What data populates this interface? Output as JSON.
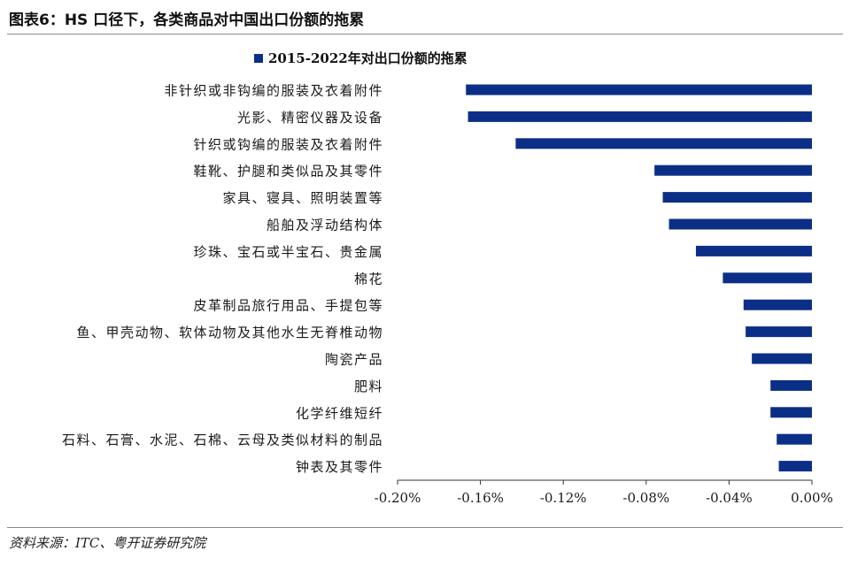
{
  "figure_title": "图表6：HS 口径下，各类商品对中国出口份额的拖累",
  "source_note": "资料来源：ITC、粤开证券研究院",
  "chart_data": {
    "type": "bar",
    "orientation": "horizontal",
    "title": "",
    "xlabel": "",
    "ylabel": "",
    "legend_position": "top-center",
    "xlim": [
      -0.2,
      0.0
    ],
    "x_ticks": [
      "-0.20%",
      "-0.16%",
      "-0.12%",
      "-0.08%",
      "-0.04%",
      "0.00%"
    ],
    "x_tick_values": [
      -0.2,
      -0.16,
      -0.12,
      -0.08,
      -0.04,
      0.0
    ],
    "unit": "%",
    "grid": false,
    "categories": [
      "非针织或非钩编的服装及衣着附件",
      "光影、精密仪器及设备",
      "针织或钩编的服装及衣着附件",
      "鞋靴、护腿和类似品及其零件",
      "家具、寝具、照明装置等",
      "船舶及浮动结构体",
      "珍珠、宝石或半宝石、贵金属",
      "棉花",
      "皮革制品旅行用品、手提包等",
      "鱼、甲壳动物、软体动物及其他水生无脊椎动物",
      "陶瓷产品",
      "肥料",
      "化学纤维短纤",
      "石料、石膏、水泥、石棉、云母及类似材料的制品",
      "钟表及其零件"
    ],
    "series": [
      {
        "name": "2015-2022年对出口份额的拖累",
        "color": "#0b2f86",
        "values": [
          -0.167,
          -0.166,
          -0.143,
          -0.076,
          -0.072,
          -0.069,
          -0.056,
          -0.043,
          -0.033,
          -0.032,
          -0.029,
          -0.02,
          -0.02,
          -0.017,
          -0.016
        ]
      }
    ]
  }
}
